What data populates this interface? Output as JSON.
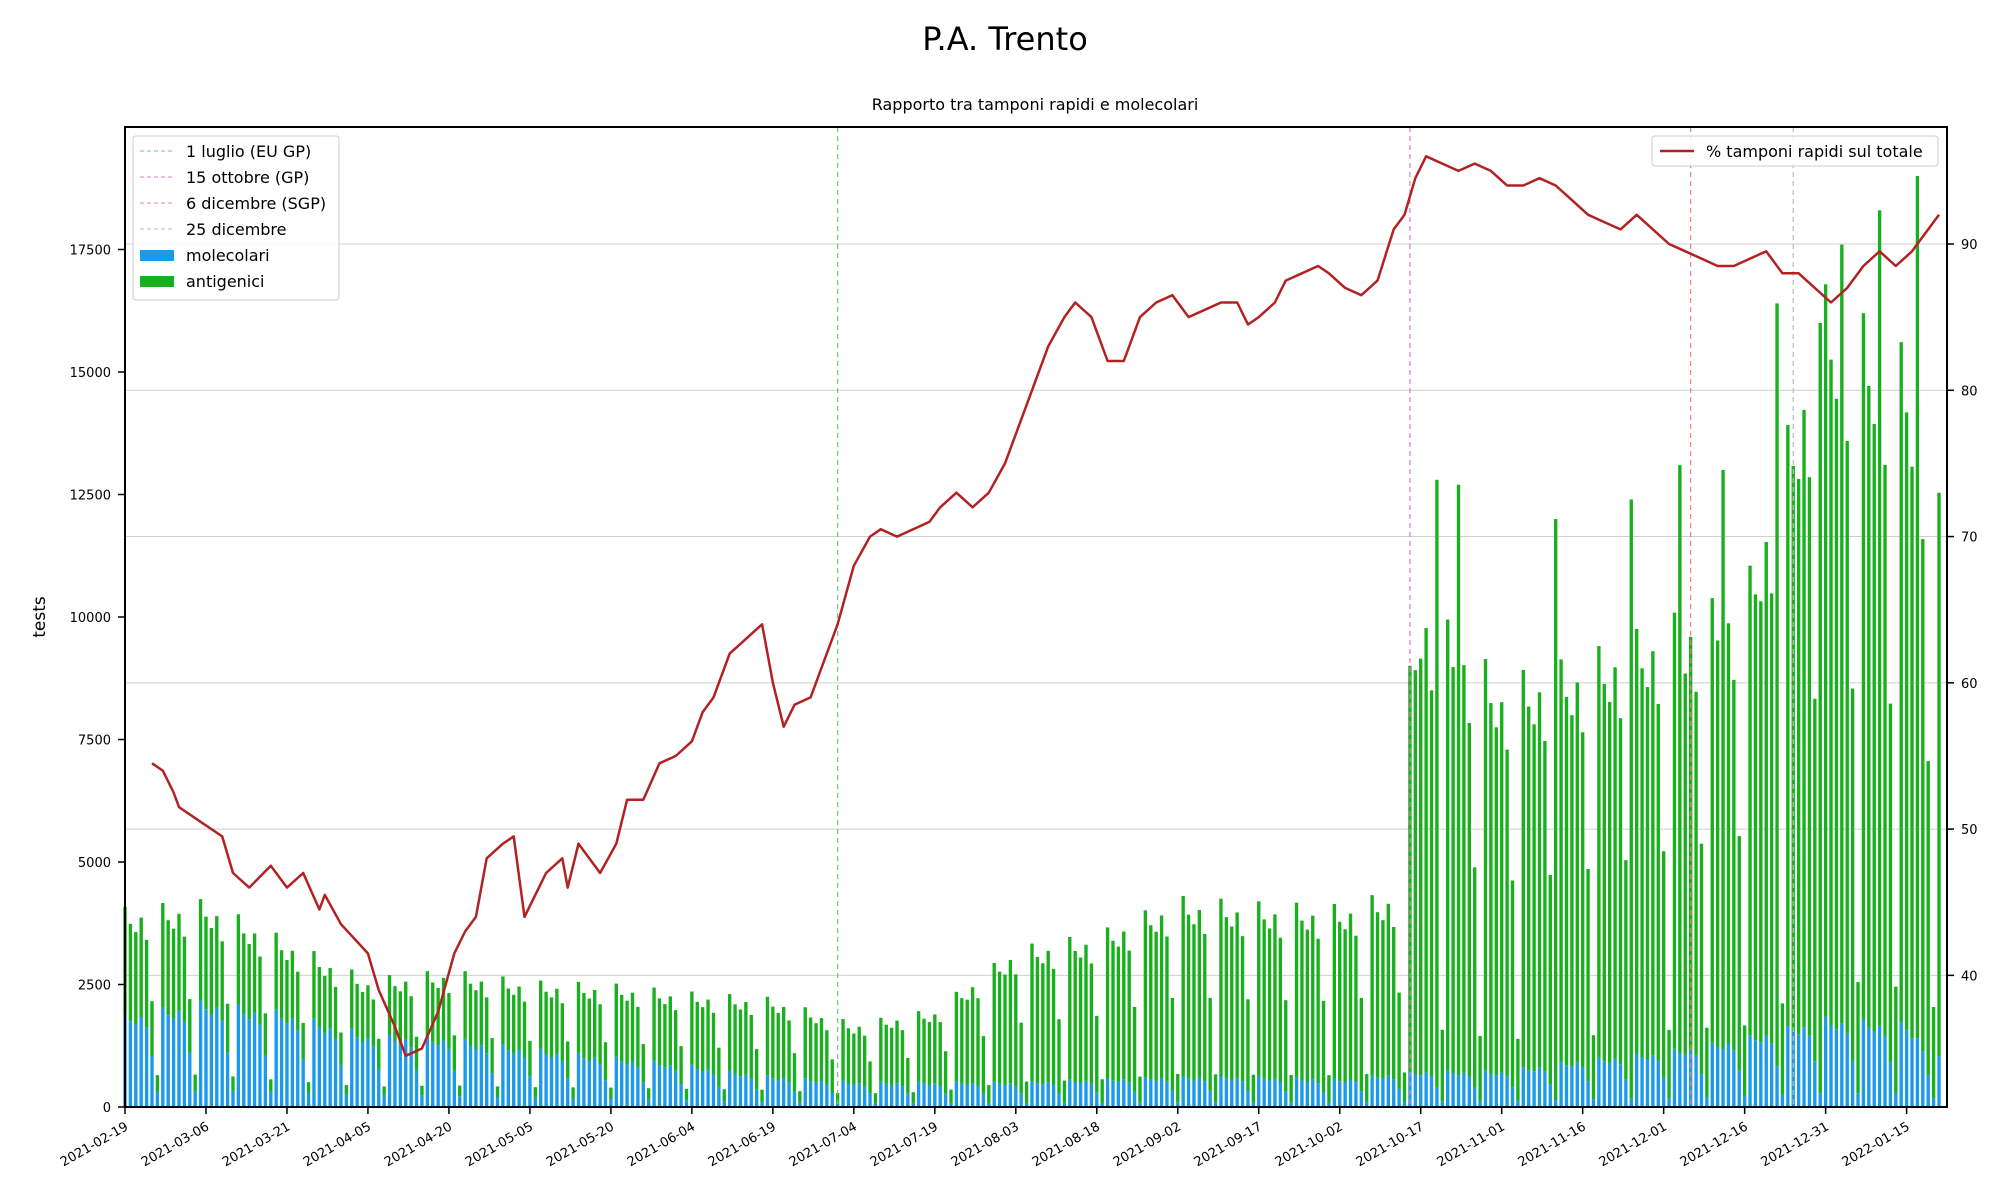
{
  "chart_data": {
    "type": "bar",
    "title": "P.A. Trento",
    "subtitle": "Rapporto tra tamponi rapidi e molecolari",
    "ylabel": "tests",
    "xlabel": "",
    "x_start": "2021-02-19",
    "x_end": "2022-01-21",
    "ylim": [
      0,
      20000
    ],
    "y_ticks": [
      0,
      2500,
      5000,
      7500,
      10000,
      12500,
      15000,
      17500
    ],
    "y2lim": [
      31,
      98
    ],
    "y2_ticks": [
      40,
      50,
      60,
      70,
      80,
      90
    ],
    "x_tick_labels": [
      "2021-02-19",
      "2021-03-06",
      "2021-03-21",
      "2021-04-05",
      "2021-04-20",
      "2021-05-05",
      "2021-05-20",
      "2021-06-04",
      "2021-06-19",
      "2021-07-04",
      "2021-07-19",
      "2021-08-03",
      "2021-08-18",
      "2021-09-02",
      "2021-09-17",
      "2021-10-02",
      "2021-10-17",
      "2021-11-01",
      "2021-11-16",
      "2021-12-01",
      "2021-12-16",
      "2021-12-31",
      "2022-01-15"
    ],
    "grid": "horizontal (secondary axis)",
    "legend_left": "top-left",
    "legend_right": "top-right",
    "vlines": [
      {
        "label": "1 luglio (EU GP)",
        "date": "2021-07-01",
        "color": "#6cc96c"
      },
      {
        "label": "15 ottobre (GP)",
        "date": "2021-10-15",
        "color": "#e377c2"
      },
      {
        "label": "6 dicembre (SGP)",
        "date": "2021-12-06",
        "color": "#f08080"
      },
      {
        "label": "25 dicembre",
        "date": "2021-12-25",
        "color": "#bbbbbb"
      }
    ],
    "series": [
      {
        "name": "molecolari",
        "kind": "bar",
        "color": "#1a9ae8",
        "weekly_avg_keypoints": [
          [
            "2021-02-19",
            1650
          ],
          [
            "2021-03-06",
            1900
          ],
          [
            "2021-03-21",
            1700
          ],
          [
            "2021-04-05",
            1300
          ],
          [
            "2021-04-20",
            1250
          ],
          [
            "2021-05-05",
            1050
          ],
          [
            "2021-05-20",
            900
          ],
          [
            "2021-06-04",
            750
          ],
          [
            "2021-06-19",
            550
          ],
          [
            "2021-07-04",
            450
          ],
          [
            "2021-07-19",
            450
          ],
          [
            "2021-08-03",
            450
          ],
          [
            "2021-08-18",
            500
          ],
          [
            "2021-09-02",
            550
          ],
          [
            "2021-09-17",
            550
          ],
          [
            "2021-10-02",
            500
          ],
          [
            "2021-10-17",
            650
          ],
          [
            "2021-11-01",
            650
          ],
          [
            "2021-11-16",
            850
          ],
          [
            "2021-12-01",
            1000
          ],
          [
            "2021-12-16",
            1250
          ],
          [
            "2021-12-31",
            1600
          ],
          [
            "2022-01-15",
            1500
          ],
          [
            "2022-01-21",
            900
          ]
        ]
      },
      {
        "name": "antigenici",
        "kind": "bar",
        "color": "#18b01c",
        "weekly_avg_keypoints": [
          [
            "2021-02-19",
            1900
          ],
          [
            "2021-03-06",
            1800
          ],
          [
            "2021-03-21",
            1300
          ],
          [
            "2021-04-05",
            1000
          ],
          [
            "2021-04-20",
            1200
          ],
          [
            "2021-05-05",
            1200
          ],
          [
            "2021-05-20",
            1300
          ],
          [
            "2021-06-04",
            1300
          ],
          [
            "2021-06-19",
            1400
          ],
          [
            "2021-07-04",
            1050
          ],
          [
            "2021-07-19",
            1300
          ],
          [
            "2021-08-03",
            2400
          ],
          [
            "2021-08-18",
            2600
          ],
          [
            "2021-09-02",
            3200
          ],
          [
            "2021-09-17",
            3100
          ],
          [
            "2021-10-02",
            3100
          ],
          [
            "2021-10-14",
            3300
          ],
          [
            "2021-10-15",
            7200
          ],
          [
            "2021-10-17",
            8500
          ],
          [
            "2021-11-01",
            7000
          ],
          [
            "2021-11-16",
            7200
          ],
          [
            "2021-12-01",
            7700
          ],
          [
            "2021-12-16",
            8000
          ],
          [
            "2021-12-31",
            13000
          ],
          [
            "2022-01-15",
            12000
          ],
          [
            "2022-01-21",
            10000
          ]
        ],
        "peaks": [
          [
            "2021-10-20",
            12800
          ],
          [
            "2021-10-24",
            12700
          ],
          [
            "2021-11-11",
            12000
          ],
          [
            "2021-11-25",
            12400
          ],
          [
            "2021-12-04",
            13100
          ],
          [
            "2021-12-12",
            13000
          ],
          [
            "2021-12-22",
            16400
          ],
          [
            "2021-12-30",
            16000
          ],
          [
            "2022-01-03",
            17600
          ],
          [
            "2022-01-10",
            18300
          ],
          [
            "2022-01-17",
            19000
          ]
        ]
      },
      {
        "name": "% tamponi rapidi sul totale",
        "kind": "line",
        "axis": "right",
        "color": "#b22222",
        "points": [
          [
            "2021-02-24",
            54.5
          ],
          [
            "2021-02-26",
            54
          ],
          [
            "2021-02-28",
            52.5
          ],
          [
            "2021-03-01",
            51.5
          ],
          [
            "2021-03-05",
            50.5
          ],
          [
            "2021-03-09",
            49.5
          ],
          [
            "2021-03-11",
            47
          ],
          [
            "2021-03-14",
            46
          ],
          [
            "2021-03-18",
            47.5
          ],
          [
            "2021-03-21",
            46
          ],
          [
            "2021-03-24",
            47
          ],
          [
            "2021-03-27",
            44.5
          ],
          [
            "2021-03-28",
            45.5
          ],
          [
            "2021-03-31",
            43.5
          ],
          [
            "2021-04-05",
            41.5
          ],
          [
            "2021-04-07",
            39
          ],
          [
            "2021-04-10",
            36.5
          ],
          [
            "2021-04-12",
            34.5
          ],
          [
            "2021-04-15",
            35
          ],
          [
            "2021-04-18",
            37.5
          ],
          [
            "2021-04-21",
            41.5
          ],
          [
            "2021-04-23",
            43
          ],
          [
            "2021-04-25",
            44
          ],
          [
            "2021-04-27",
            48
          ],
          [
            "2021-04-30",
            49
          ],
          [
            "2021-05-02",
            49.5
          ],
          [
            "2021-05-04",
            44
          ],
          [
            "2021-05-08",
            47
          ],
          [
            "2021-05-11",
            48
          ],
          [
            "2021-05-12",
            46
          ],
          [
            "2021-05-14",
            49
          ],
          [
            "2021-05-18",
            47
          ],
          [
            "2021-05-21",
            49
          ],
          [
            "2021-05-23",
            52
          ],
          [
            "2021-05-26",
            52
          ],
          [
            "2021-05-29",
            54.5
          ],
          [
            "2021-06-01",
            55
          ],
          [
            "2021-06-04",
            56
          ],
          [
            "2021-06-06",
            58
          ],
          [
            "2021-06-08",
            59
          ],
          [
            "2021-06-11",
            62
          ],
          [
            "2021-06-14",
            63
          ],
          [
            "2021-06-17",
            64
          ],
          [
            "2021-06-19",
            60
          ],
          [
            "2021-06-21",
            57
          ],
          [
            "2021-06-23",
            58.5
          ],
          [
            "2021-06-26",
            59
          ],
          [
            "2021-06-29",
            62
          ],
          [
            "2021-07-01",
            64
          ],
          [
            "2021-07-04",
            68
          ],
          [
            "2021-07-07",
            70
          ],
          [
            "2021-07-09",
            70.5
          ],
          [
            "2021-07-12",
            70
          ],
          [
            "2021-07-15",
            70.5
          ],
          [
            "2021-07-18",
            71
          ],
          [
            "2021-07-20",
            72
          ],
          [
            "2021-07-23",
            73
          ],
          [
            "2021-07-26",
            72
          ],
          [
            "2021-07-29",
            73
          ],
          [
            "2021-08-01",
            75
          ],
          [
            "2021-08-03",
            77
          ],
          [
            "2021-08-06",
            80
          ],
          [
            "2021-08-09",
            83
          ],
          [
            "2021-08-12",
            85
          ],
          [
            "2021-08-14",
            86
          ],
          [
            "2021-08-17",
            85
          ],
          [
            "2021-08-20",
            82
          ],
          [
            "2021-08-23",
            82
          ],
          [
            "2021-08-26",
            85
          ],
          [
            "2021-08-29",
            86
          ],
          [
            "2021-09-01",
            86.5
          ],
          [
            "2021-09-04",
            85
          ],
          [
            "2021-09-07",
            85.5
          ],
          [
            "2021-09-10",
            86
          ],
          [
            "2021-09-13",
            86
          ],
          [
            "2021-09-15",
            84.5
          ],
          [
            "2021-09-17",
            85
          ],
          [
            "2021-09-20",
            86
          ],
          [
            "2021-09-22",
            87.5
          ],
          [
            "2021-09-25",
            88
          ],
          [
            "2021-09-28",
            88.5
          ],
          [
            "2021-09-30",
            88
          ],
          [
            "2021-10-03",
            87
          ],
          [
            "2021-10-06",
            86.5
          ],
          [
            "2021-10-09",
            87.5
          ],
          [
            "2021-10-12",
            91
          ],
          [
            "2021-10-14",
            92
          ],
          [
            "2021-10-16",
            94.5
          ],
          [
            "2021-10-18",
            96
          ],
          [
            "2021-10-21",
            95.5
          ],
          [
            "2021-10-24",
            95
          ],
          [
            "2021-10-27",
            95.5
          ],
          [
            "2021-10-30",
            95
          ],
          [
            "2021-11-02",
            94
          ],
          [
            "2021-11-05",
            94
          ],
          [
            "2021-11-08",
            94.5
          ],
          [
            "2021-11-11",
            94
          ],
          [
            "2021-11-14",
            93
          ],
          [
            "2021-11-17",
            92
          ],
          [
            "2021-11-20",
            91.5
          ],
          [
            "2021-11-23",
            91
          ],
          [
            "2021-11-26",
            92
          ],
          [
            "2021-11-29",
            91
          ],
          [
            "2021-12-02",
            90
          ],
          [
            "2021-12-05",
            89.5
          ],
          [
            "2021-12-08",
            89
          ],
          [
            "2021-12-11",
            88.5
          ],
          [
            "2021-12-14",
            88.5
          ],
          [
            "2021-12-17",
            89
          ],
          [
            "2021-12-20",
            89.5
          ],
          [
            "2021-12-23",
            88
          ],
          [
            "2021-12-26",
            88
          ],
          [
            "2021-12-29",
            87
          ],
          [
            "2022-01-01",
            86
          ],
          [
            "2022-01-04",
            87
          ],
          [
            "2022-01-07",
            88.5
          ],
          [
            "2022-01-10",
            89.5
          ],
          [
            "2022-01-13",
            88.5
          ],
          [
            "2022-01-16",
            89.5
          ],
          [
            "2022-01-19",
            91
          ],
          [
            "2022-01-21",
            92
          ]
        ]
      }
    ]
  }
}
